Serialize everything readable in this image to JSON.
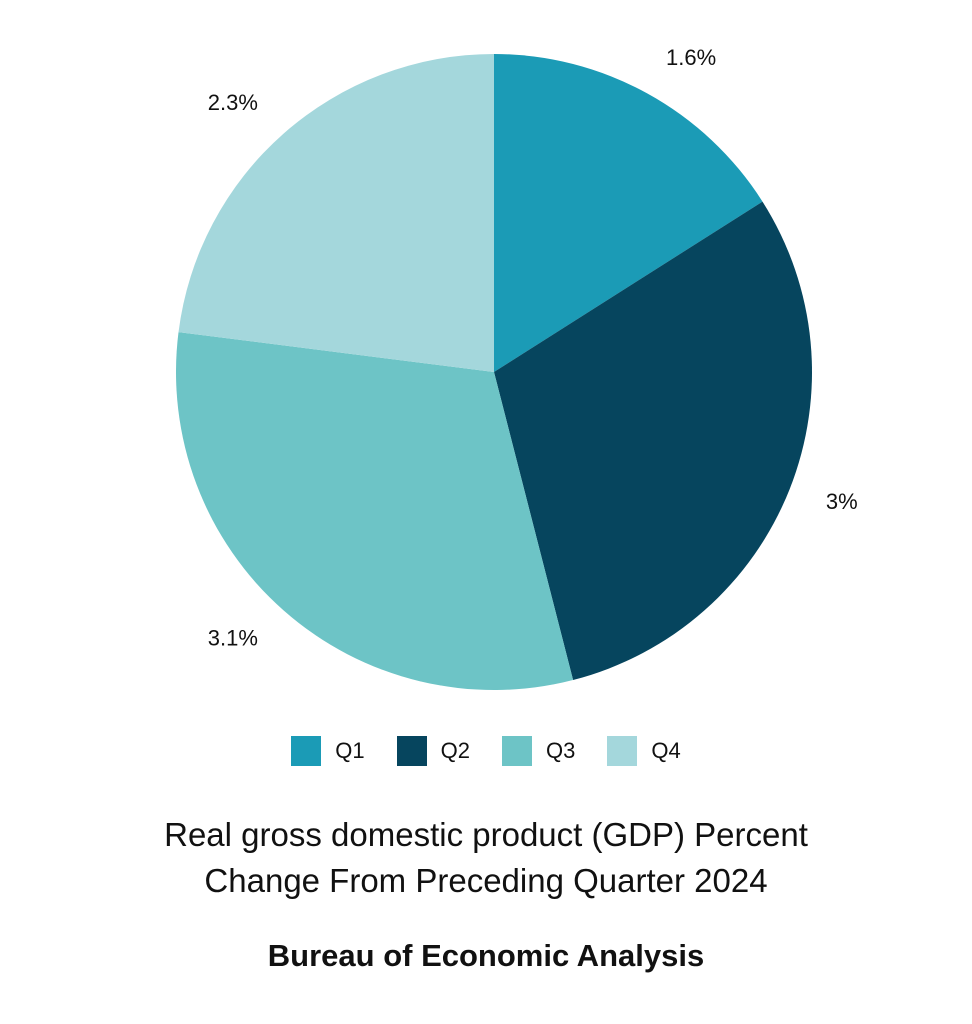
{
  "chart_data": {
    "type": "pie",
    "categories": [
      "Q1",
      "Q2",
      "Q3",
      "Q4"
    ],
    "values": [
      1.6,
      3,
      3.1,
      2.3
    ],
    "labels": [
      "1.6%",
      "3%",
      "3.1%",
      "2.3%"
    ],
    "colors": [
      "#1b9bb6",
      "#06455e",
      "#6dc4c6",
      "#a4d7dc"
    ],
    "title_lines": [
      "Real gross domestic product (GDP) Percent",
      "Change From Preceding Quarter 2024"
    ],
    "source": "Bureau of Economic Analysis",
    "legend_position": "bottom",
    "start_angle": "top",
    "direction": "clockwise"
  }
}
